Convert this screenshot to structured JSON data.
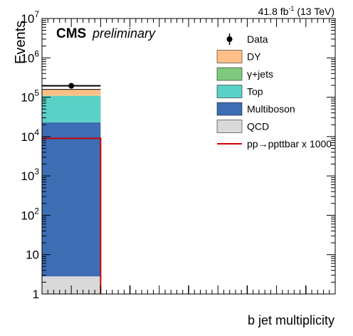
{
  "header": {
    "lumi_prefix": "41.8 fb",
    "lumi_exponent": "-1",
    "lumi_suffix": " (13 TeV)",
    "cms": "CMS",
    "preliminary": "preliminary"
  },
  "chart_data": {
    "type": "bar",
    "stacked": true,
    "log_y": true,
    "xlabel": "b jet multiplicity",
    "ylabel": "Events",
    "xlim": [
      0,
      5
    ],
    "ylim": [
      1,
      10000000
    ],
    "x_ticks": [
      "0",
      "0.5",
      "1",
      "1.5",
      "2",
      "2.5",
      "3",
      "3.5",
      "4",
      "4.5",
      "5"
    ],
    "y_ticks": [
      {
        "base": "1",
        "exp": ""
      },
      {
        "base": "10",
        "exp": ""
      },
      {
        "base": "10",
        "exp": "2"
      },
      {
        "base": "10",
        "exp": "3"
      },
      {
        "base": "10",
        "exp": "4"
      },
      {
        "base": "10",
        "exp": "5"
      },
      {
        "base": "10",
        "exp": "6"
      },
      {
        "base": "10",
        "exp": "7"
      }
    ],
    "bins": [
      [
        0,
        1
      ],
      [
        1,
        2
      ],
      [
        2,
        3
      ],
      [
        3,
        4
      ],
      [
        4,
        5
      ]
    ],
    "stack": [
      {
        "name": "QCD",
        "color": "#d9d9d9",
        "values": [
          2.8,
          0,
          0,
          0,
          0
        ]
      },
      {
        "name": "Multiboson",
        "color": "#3d6eb4",
        "values": [
          23000,
          0,
          0,
          0,
          0
        ]
      },
      {
        "name": "Top",
        "color": "#5ad1c6",
        "values": [
          85000,
          0,
          0,
          0,
          0
        ]
      },
      {
        "name": "γ+jets",
        "color": "#7ec97e",
        "values": [
          2000,
          0,
          0,
          0,
          0
        ]
      },
      {
        "name": "DY",
        "color": "#ffbf86",
        "values": [
          48000,
          0,
          0,
          0,
          0
        ]
      }
    ],
    "data": {
      "name": "Data",
      "x": [
        0.5
      ],
      "values": [
        195000
      ],
      "xerr": 0.5,
      "empty_bin_centers": [
        1.5,
        2.5,
        3.5,
        4.5
      ]
    },
    "signal": {
      "name": "pp→ppttbar x 1000",
      "color": "#cc0000",
      "values": [
        9000,
        0,
        0,
        0,
        0
      ]
    },
    "legend": [
      {
        "label": "Data",
        "kind": "marker"
      },
      {
        "label": "DY",
        "kind": "fill",
        "color": "#ffbf86"
      },
      {
        "label": "γ+jets",
        "kind": "fill",
        "color": "#7ec97e"
      },
      {
        "label": "Top",
        "kind": "fill",
        "color": "#5ad1c6"
      },
      {
        "label": "Multiboson",
        "kind": "fill",
        "color": "#3d6eb4"
      },
      {
        "label": "QCD",
        "kind": "fill",
        "color": "#d9d9d9"
      },
      {
        "label": "pp→ppttbar x 1000",
        "kind": "line",
        "color": "#cc0000"
      }
    ],
    "legend_position": "top-right"
  }
}
